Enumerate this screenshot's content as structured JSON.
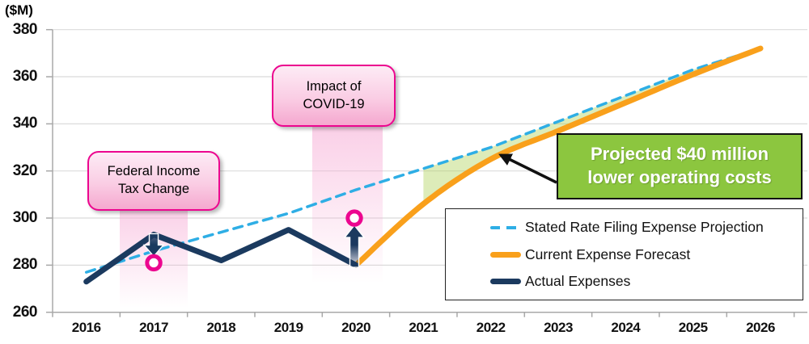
{
  "y_axis_unit": "($M)",
  "chart_data": {
    "type": "line",
    "x": [
      2016,
      2017,
      2018,
      2019,
      2020,
      2021,
      2022,
      2023,
      2024,
      2025,
      2026
    ],
    "ylim": [
      260,
      380
    ],
    "ytick_step": 20,
    "grid": true,
    "legend_position": "lower-right-inside",
    "series": [
      {
        "name": "Stated Rate Filing Expense Projection",
        "style": "dashed",
        "color": "#2EAEE5",
        "values": [
          277,
          286,
          294,
          302,
          312,
          321,
          330,
          341,
          352,
          363,
          372
        ]
      },
      {
        "name": "Current Expense Forecast",
        "style": "solid",
        "color": "#F9A01B",
        "smooth": true,
        "values": [
          null,
          null,
          null,
          null,
          280,
          306,
          325,
          337,
          349,
          361,
          372
        ]
      },
      {
        "name": "Actual Expenses",
        "style": "solid",
        "color": "#1B3A5F",
        "values": [
          273,
          293,
          282,
          295,
          280,
          null,
          null,
          null,
          null,
          null,
          null
        ]
      }
    ],
    "gap_shading": {
      "between": [
        "Stated Rate Filing Expense Projection",
        "Current Expense Forecast"
      ],
      "from_year": 2021,
      "to_year": 2026,
      "color": "#A9CF4F",
      "opacity": 0.4
    }
  },
  "annotations": {
    "callout_tax": {
      "line1": "Federal Income",
      "line2": "Tax Change",
      "anchor_year": 2017
    },
    "callout_covid": {
      "line1": "Impact of",
      "line2": "COVID-19",
      "anchor_year": 2020
    },
    "savings_label": {
      "line1": "Projected $40 million",
      "line2": "lower operating costs"
    },
    "markers": [
      {
        "year": 2017,
        "value": 281,
        "arrow": "down"
      },
      {
        "year": 2020,
        "value": 300,
        "arrow": "up"
      }
    ]
  },
  "colors": {
    "projection_line": "#2EAEE5",
    "forecast_line": "#F9A01B",
    "actual_line": "#1B3A5F",
    "marker_ring": "#EC068F",
    "callout_border": "#EC068F",
    "savings_bg": "#8CC63F",
    "gap_fill": "#A9CF4F",
    "gridline": "#DBDBDB",
    "axis": "#A8A8A8"
  }
}
